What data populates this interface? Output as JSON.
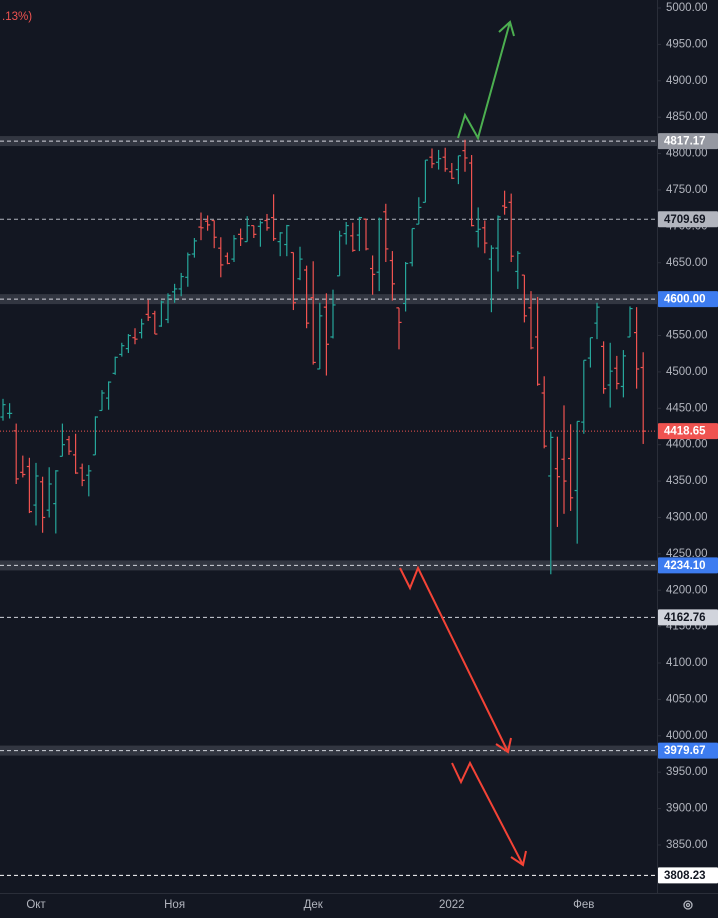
{
  "header": ".13%)",
  "chart_data": {
    "type": "ohlc",
    "up_color": "#26a69a",
    "down_color": "#ef5350",
    "categories": [
      null,
      null,
      null,
      null,
      null,
      "Окт",
      null,
      null,
      null,
      null,
      null,
      null,
      null,
      null,
      null,
      null,
      null,
      null,
      null,
      null,
      null,
      null,
      null,
      null,
      null,
      null,
      "Ноя",
      null,
      null,
      null,
      null,
      null,
      null,
      null,
      null,
      null,
      null,
      null,
      null,
      null,
      null,
      null,
      null,
      null,
      null,
      null,
      null,
      "Дек",
      null,
      null,
      null,
      null,
      null,
      null,
      null,
      null,
      null,
      null,
      null,
      null,
      null,
      null,
      null,
      null,
      null,
      null,
      null,
      null,
      "2022",
      null,
      null,
      null,
      null,
      null,
      null,
      null,
      null,
      null,
      null,
      null,
      null,
      null,
      null,
      null,
      null,
      null,
      null,
      null,
      "Фев",
      null,
      null,
      null,
      null,
      null,
      null,
      null,
      null
    ],
    "ohlc": [
      [
        4438,
        4463,
        4433,
        4455
      ],
      [
        4443,
        4457,
        4436,
        4443
      ],
      [
        4419,
        4429,
        4346,
        4353
      ],
      [
        4362,
        4385,
        4355,
        4359
      ],
      [
        4370,
        4382,
        4306,
        4308
      ],
      [
        4317,
        4375,
        4289,
        4357
      ],
      [
        4349,
        4356,
        4279,
        4300
      ],
      [
        4310,
        4369,
        4300,
        4346
      ],
      [
        4319,
        4365,
        4278,
        4364
      ],
      [
        4384,
        4429,
        4384,
        4400
      ],
      [
        4407,
        4412,
        4386,
        4391
      ],
      [
        4386,
        4415,
        4360,
        4361
      ],
      [
        4368,
        4374,
        4343,
        4351
      ],
      [
        4358,
        4372,
        4329,
        4364
      ],
      [
        4386,
        4439,
        4386,
        4438
      ],
      [
        4447,
        4475,
        4447,
        4471
      ],
      [
        4464,
        4487,
        4448,
        4486
      ],
      [
        4498,
        4521,
        4496,
        4520
      ],
      [
        4524,
        4540,
        4521,
        4536
      ],
      [
        4532,
        4552,
        4526,
        4550
      ],
      [
        4547,
        4560,
        4538,
        4545
      ],
      [
        4554,
        4573,
        4546,
        4566
      ],
      [
        4579,
        4599,
        4570,
        4575
      ],
      [
        4580,
        4584,
        4552,
        4552
      ],
      [
        4563,
        4598,
        4562,
        4596
      ],
      [
        4572,
        4608,
        4567,
        4605
      ],
      [
        4610,
        4621,
        4595,
        4614
      ],
      [
        4614,
        4636,
        4604,
        4631
      ],
      [
        4630,
        4664,
        4617,
        4661
      ],
      [
        4662,
        4684,
        4657,
        4680
      ],
      [
        4699,
        4719,
        4681,
        4698
      ],
      [
        4707,
        4715,
        4694,
        4702
      ],
      [
        4708,
        4708,
        4670,
        4685
      ],
      [
        4670,
        4685,
        4630,
        4647
      ],
      [
        4659,
        4664,
        4648,
        4649
      ],
      [
        4655,
        4688,
        4651,
        4683
      ],
      [
        4689,
        4697,
        4673,
        4683
      ],
      [
        4679,
        4714,
        4679,
        4701
      ],
      [
        4701,
        4701,
        4684,
        4689
      ],
      [
        4700,
        4708,
        4672,
        4705
      ],
      [
        4708,
        4717,
        4694,
        4698
      ],
      [
        4712,
        4744,
        4680,
        4683
      ],
      [
        4679,
        4692,
        4659,
        4691
      ],
      [
        4675,
        4702,
        4659,
        4701
      ],
      [
        4664,
        4664,
        4585,
        4595
      ],
      [
        4628,
        4672,
        4626,
        4655
      ],
      [
        4640,
        4646,
        4560,
        4567
      ],
      [
        4602,
        4652,
        4510,
        4513
      ],
      [
        4504,
        4595,
        4504,
        4577
      ],
      [
        4589,
        4608,
        4495,
        4538
      ],
      [
        4548,
        4613,
        4546,
        4592
      ],
      [
        4632,
        4694,
        4632,
        4687
      ],
      [
        4690,
        4706,
        4675,
        4701
      ],
      [
        4687,
        4705,
        4665,
        4667
      ],
      [
        4688,
        4713,
        4666,
        4712
      ],
      [
        4710,
        4710,
        4667,
        4669
      ],
      [
        4642,
        4660,
        4606,
        4634
      ],
      [
        4637,
        4712,
        4611,
        4710
      ],
      [
        4720,
        4731,
        4651,
        4669
      ],
      [
        4653,
        4666,
        4598,
        4621
      ],
      [
        4588,
        4588,
        4531,
        4568
      ],
      [
        4594,
        4651,
        4583,
        4649
      ],
      [
        4650,
        4697,
        4645,
        4697
      ],
      [
        4703,
        4740,
        4703,
        4726
      ],
      [
        4733,
        4791,
        4733,
        4791
      ],
      [
        4795,
        4807,
        4780,
        4786
      ],
      [
        4788,
        4805,
        4778,
        4793
      ],
      [
        4795,
        4808,
        4775,
        4779
      ],
      [
        4775,
        4787,
        4765,
        4766
      ],
      [
        4778,
        4797,
        4758,
        4797
      ],
      [
        4804,
        4819,
        4775,
        4794
      ],
      [
        4787,
        4798,
        4700,
        4701
      ],
      [
        4693,
        4726,
        4671,
        4696
      ],
      [
        4698,
        4708,
        4663,
        4677
      ],
      [
        4655,
        4674,
        4582,
        4670
      ],
      [
        4670,
        4715,
        4638,
        4713
      ],
      [
        4728,
        4749,
        4716,
        4726
      ],
      [
        4733,
        4745,
        4651,
        4659
      ],
      [
        4638,
        4666,
        4614,
        4663
      ],
      [
        4633,
        4633,
        4568,
        4577
      ],
      [
        4588,
        4611,
        4531,
        4533
      ],
      [
        4548,
        4603,
        4481,
        4483
      ],
      [
        4471,
        4494,
        4395,
        4398
      ],
      [
        4357,
        4418,
        4222,
        4410
      ],
      [
        4367,
        4411,
        4287,
        4356
      ],
      [
        4380,
        4454,
        4305,
        4350
      ],
      [
        4381,
        4428,
        4309,
        4327
      ],
      [
        4337,
        4432,
        4264,
        4432
      ],
      [
        4431,
        4516,
        4415,
        4516
      ],
      [
        4519,
        4547,
        4506,
        4547
      ],
      [
        4567,
        4595,
        4545,
        4589
      ],
      [
        4535,
        4542,
        4470,
        4477
      ],
      [
        4482,
        4540,
        4451,
        4501
      ],
      [
        4505,
        4522,
        4476,
        4484
      ],
      [
        4480,
        4530,
        4465,
        4522
      ],
      [
        4548,
        4590,
        4548,
        4587
      ],
      [
        4554,
        4589,
        4477,
        4504
      ],
      [
        4506,
        4527,
        4401,
        4418.65
      ]
    ],
    "ylim": [
      3784,
      5011
    ],
    "yticks": [
      {
        "value": 3850,
        "label": "3850.00"
      },
      {
        "value": 3900,
        "label": "3900.00"
      },
      {
        "value": 3950,
        "label": "3950.00"
      },
      {
        "value": 4000,
        "label": "4000.00"
      },
      {
        "value": 4050,
        "label": "4050.00"
      },
      {
        "value": 4100,
        "label": "4100.00"
      },
      {
        "value": 4150,
        "label": "4150.00"
      },
      {
        "value": 4200,
        "label": "4200.00"
      },
      {
        "value": 4250,
        "label": "4250.00"
      },
      {
        "value": 4300,
        "label": "4300.00"
      },
      {
        "value": 4350,
        "label": "4350.00"
      },
      {
        "value": 4400,
        "label": "4400.00"
      },
      {
        "value": 4450,
        "label": "4450.00"
      },
      {
        "value": 4500,
        "label": "4500.00"
      },
      {
        "value": 4550,
        "label": "4550.00"
      },
      {
        "value": 4600,
        "label": "4600.00"
      },
      {
        "value": 4650,
        "label": "4650.00"
      },
      {
        "value": 4700,
        "label": "4700.00"
      },
      {
        "value": 4750,
        "label": "4750.00"
      },
      {
        "value": 4800,
        "label": "4800.00"
      },
      {
        "value": 4850,
        "label": "4850.00"
      },
      {
        "value": 4900,
        "label": "4900.00"
      },
      {
        "value": 4950,
        "label": "4950.00"
      },
      {
        "value": 5000,
        "label": "5000.00"
      }
    ],
    "levels": [
      {
        "value": 4817.17,
        "label": "4817.17",
        "style": "band",
        "color": "#9598a1"
      },
      {
        "value": 4709.69,
        "label": "4709.69",
        "style": "dashed",
        "color": "#b2b5be"
      },
      {
        "value": 4600,
        "label": "4600.00",
        "style": "band",
        "color": "#3d7cf0"
      },
      {
        "value": 4418.65,
        "label": "4418.65",
        "style": "dotted",
        "color": "#ef5350"
      },
      {
        "value": 4234.1,
        "label": "4234.10",
        "style": "band",
        "color": "#3d7cf0"
      },
      {
        "value": 4162.76,
        "label": "4162.76",
        "style": "dashed",
        "color": "#d1d4dc"
      },
      {
        "value": 3979.67,
        "label": "3979.67",
        "style": "band",
        "color": "#3d7cf0"
      },
      {
        "value": 3808.23,
        "label": "3808.23",
        "style": "dashed",
        "color": "#ffffff"
      }
    ]
  }
}
